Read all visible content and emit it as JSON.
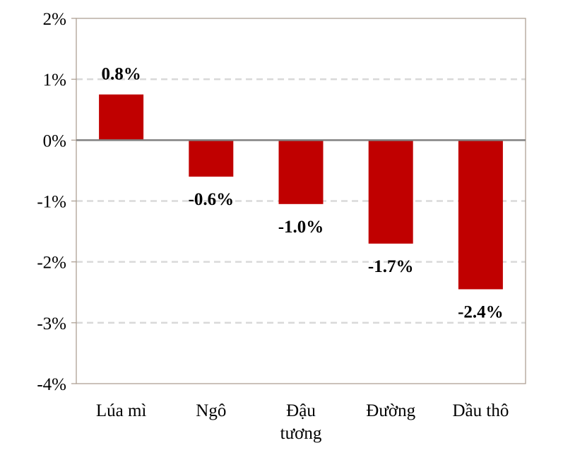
{
  "chart_data": {
    "type": "bar",
    "categories": [
      [
        "Lúa mì"
      ],
      [
        "Ngô"
      ],
      [
        "Đậu",
        "tương"
      ],
      [
        "Đường"
      ],
      [
        "Dầu thô"
      ]
    ],
    "values": [
      0.75,
      -0.6,
      -1.05,
      -1.7,
      -2.45
    ],
    "data_labels": [
      "0.8%",
      "-0.6%",
      "-1.0%",
      "-1.7%",
      "-2.4%"
    ],
    "y_ticks": [
      2,
      1,
      0,
      -1,
      -2,
      -3,
      -4
    ],
    "y_tick_labels": [
      "2%",
      "1%",
      "0%",
      "-1%",
      "-2%",
      "-3%",
      "-4%"
    ],
    "ylim": [
      -4,
      2
    ],
    "grid": "dashed horizontal",
    "title": "",
    "xlabel": "",
    "ylabel": "",
    "colors": {
      "bar": "#c00000",
      "grid": "#d9d9d9",
      "zero_line": "#808080",
      "frame": "#a89a8c"
    }
  }
}
